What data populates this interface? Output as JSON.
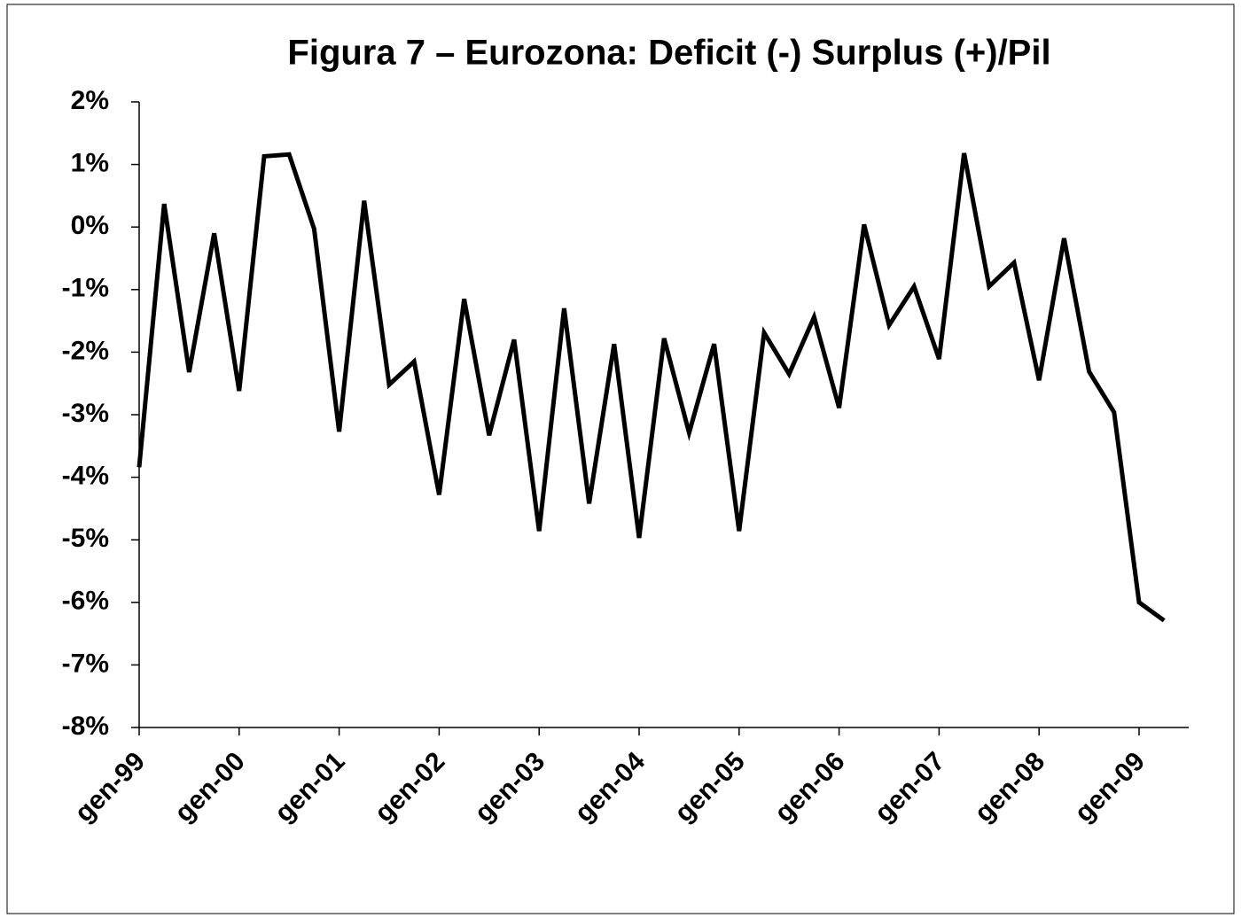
{
  "chart_data": {
    "type": "line",
    "title": "Figura 7 – Eurozona: Deficit (-) Surplus (+)/Pil",
    "categories": [
      "gen-99",
      null,
      null,
      null,
      "gen-00",
      null,
      null,
      null,
      "gen-01",
      null,
      null,
      null,
      "gen-02",
      null,
      null,
      null,
      "gen-03",
      null,
      null,
      null,
      "gen-04",
      null,
      null,
      null,
      "gen-05",
      null,
      null,
      null,
      "gen-06",
      null,
      null,
      null,
      "gen-07",
      null,
      null,
      null,
      "gen-08",
      null,
      null,
      null,
      "gen-09",
      null
    ],
    "series": [
      {
        "color": "#000000",
        "values": [
          -3.84,
          0.37,
          -2.32,
          -0.1,
          -2.62,
          1.13,
          1.16,
          -0.03,
          -3.27,
          0.42,
          -2.52,
          -2.15,
          -4.28,
          -1.15,
          -3.33,
          -1.8,
          -4.86,
          -1.3,
          -4.42,
          -1.87,
          -4.97,
          -1.78,
          -3.29,
          -1.87,
          -4.86,
          -1.69,
          -2.35,
          -1.44,
          -2.89,
          0.04,
          -1.57,
          -0.95,
          -2.11,
          1.18,
          -0.95,
          -0.57,
          -2.45,
          -0.18,
          -2.31,
          -2.96,
          -6.0,
          -6.29
        ]
      }
    ],
    "ylim": [
      -8,
      2
    ],
    "yticks": [
      {
        "value": -8,
        "label": "-8%"
      },
      {
        "value": -7,
        "label": "-7%"
      },
      {
        "value": -6,
        "label": "-6%"
      },
      {
        "value": -5,
        "label": "-5%"
      },
      {
        "value": -4,
        "label": "-4%"
      },
      {
        "value": -3,
        "label": "-3%"
      },
      {
        "value": -2,
        "label": "-2%"
      },
      {
        "value": -1,
        "label": "-1%"
      },
      {
        "value": 0,
        "label": "0%"
      },
      {
        "value": 1,
        "label": "1%"
      },
      {
        "value": 2,
        "label": "2%"
      }
    ],
    "grid": false
  }
}
